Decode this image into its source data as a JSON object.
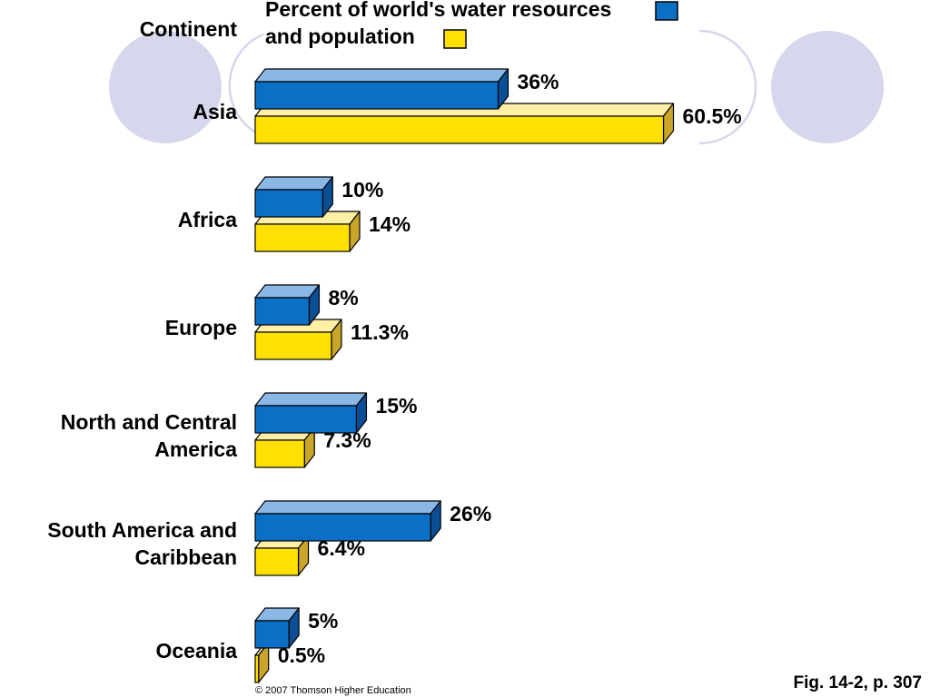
{
  "chart_data": {
    "type": "bar",
    "orientation": "horizontal",
    "category_axis_label": "Continent",
    "categories": [
      [
        "Asia"
      ],
      [
        "Africa"
      ],
      [
        "Europe"
      ],
      [
        "North and Central",
        "America"
      ],
      [
        "South America and",
        "Caribbean"
      ],
      [
        "Oceania"
      ]
    ],
    "series": [
      {
        "name_lines": [
          "Percent of world's water resources"
        ],
        "color": "#0b6fc6",
        "values": [
          36,
          10,
          8,
          15,
          26,
          5
        ],
        "value_labels": [
          "36%",
          "10%",
          "8%",
          "15%",
          "26%",
          "5%"
        ]
      },
      {
        "name_lines": [
          "and population"
        ],
        "color": "#ffe000",
        "values": [
          60.5,
          14,
          11.3,
          7.3,
          6.4,
          0.5
        ],
        "value_labels": [
          "60.5%",
          "14%",
          "11.3%",
          "7.3%",
          "6.4%",
          "0.5%"
        ]
      }
    ],
    "legend_placement": "top",
    "grid": false
  },
  "footer": {
    "copyright": "© 2007 Thomson Higher Education",
    "figure_ref": "Fig. 14-2, p. 307"
  },
  "decoration_colors": {
    "circle_fill": "#d6d6ec",
    "outline": "#d6d6ec"
  }
}
